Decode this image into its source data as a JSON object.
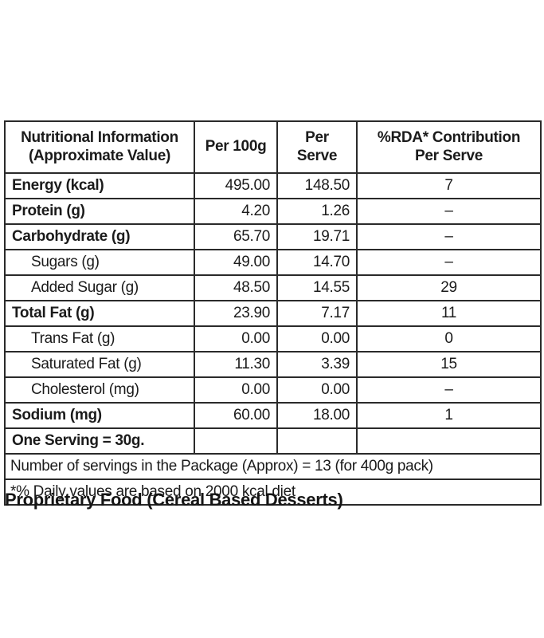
{
  "table": {
    "header": {
      "col1_line1": "Nutritional Information",
      "col1_line2": "(Approximate Value)",
      "col2": "Per 100g",
      "col3": "Per Serve",
      "col4_line1": "%RDA* Contribution",
      "col4_line2": "Per Serve"
    },
    "rows": [
      {
        "label": "Energy (kcal)",
        "per_100g": "495.00",
        "per_serve": "148.50",
        "rda": "7"
      },
      {
        "label": "Protein (g)",
        "per_100g": "4.20",
        "per_serve": "1.26",
        "rda": "–"
      },
      {
        "label": "Carbohydrate (g)",
        "per_100g": "65.70",
        "per_serve": "19.71",
        "rda": "–"
      },
      {
        "label": "Sugars (g)",
        "per_100g": "49.00",
        "per_serve": "14.70",
        "rda": "–"
      },
      {
        "label": "Added Sugar (g)",
        "per_100g": "48.50",
        "per_serve": "14.55",
        "rda": "29"
      },
      {
        "label": "Total Fat (g)",
        "per_100g": "23.90",
        "per_serve": "7.17",
        "rda": "11"
      },
      {
        "label": "Trans Fat (g)",
        "per_100g": "0.00",
        "per_serve": "0.00",
        "rda": "0"
      },
      {
        "label": "Saturated Fat (g)",
        "per_100g": "11.30",
        "per_serve": "3.39",
        "rda": "15"
      },
      {
        "label": "Cholesterol (mg)",
        "per_100g": "0.00",
        "per_serve": "0.00",
        "rda": "–"
      },
      {
        "label": "Sodium (mg)",
        "per_100g": "60.00",
        "per_serve": "18.00",
        "rda": "1"
      }
    ],
    "serving_row_label": "One Serving = 30g.",
    "servings_note": "Number of servings in the Package (Approx) = 13 (for 400g pack)",
    "daily_value_note": "*% Daily values are based on 2000 kcal diet"
  },
  "footer_caption": "Proprietary Food (Cereal Based Desserts)"
}
